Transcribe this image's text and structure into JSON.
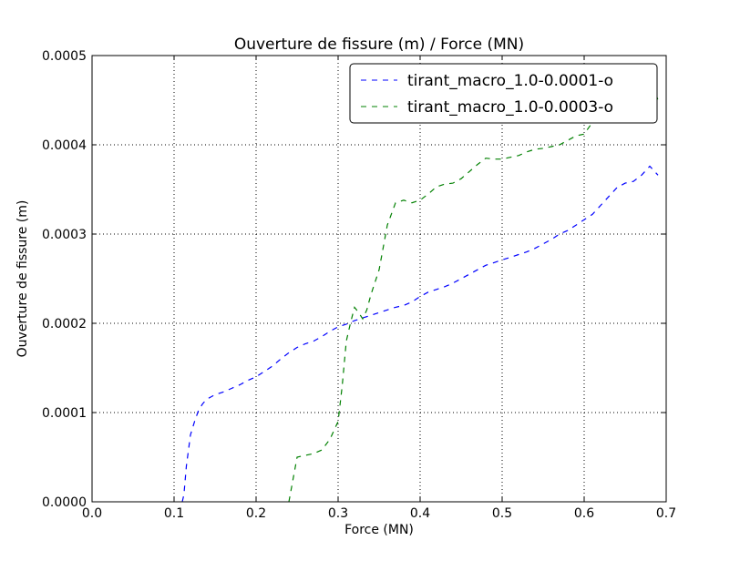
{
  "colors": {
    "series_1": "#0000ff",
    "series_2": "#008000",
    "grid": "#000000",
    "frame": "#000000",
    "legend_border": "#000000"
  },
  "chart_data": {
    "type": "line",
    "title": "Ouverture de fissure (m) / Force (MN)",
    "xlabel": "Force (MN)",
    "ylabel": "Ouverture de fissure (m)",
    "xlim": [
      0.0,
      0.7
    ],
    "ylim": [
      0.0,
      0.0005
    ],
    "xticks": [
      0.0,
      0.1,
      0.2,
      0.3,
      0.4,
      0.5,
      0.6,
      0.7
    ],
    "xtick_labels": [
      "0.0",
      "0.1",
      "0.2",
      "0.3",
      "0.4",
      "0.5",
      "0.6",
      "0.7"
    ],
    "yticks": [
      0.0,
      0.0001,
      0.0002,
      0.0003,
      0.0004,
      0.0005
    ],
    "ytick_labels": [
      "0.0000",
      "0.0001",
      "0.0002",
      "0.0003",
      "0.0004",
      "0.0005"
    ],
    "grid": true,
    "line_style": "dashed",
    "legend_position": "top-right",
    "series": [
      {
        "name": "tirant_macro_1.0-0.0001-o",
        "color": "#0000ff",
        "x": [
          0.11,
          0.112,
          0.115,
          0.12,
          0.125,
          0.13,
          0.135,
          0.14,
          0.15,
          0.16,
          0.17,
          0.18,
          0.19,
          0.2,
          0.21,
          0.22,
          0.23,
          0.24,
          0.25,
          0.26,
          0.27,
          0.28,
          0.29,
          0.3,
          0.31,
          0.32,
          0.33,
          0.34,
          0.35,
          0.36,
          0.37,
          0.38,
          0.39,
          0.4,
          0.41,
          0.42,
          0.43,
          0.44,
          0.45,
          0.46,
          0.47,
          0.48,
          0.49,
          0.5,
          0.51,
          0.52,
          0.53,
          0.54,
          0.55,
          0.56,
          0.57,
          0.58,
          0.59,
          0.6,
          0.61,
          0.62,
          0.63,
          0.64,
          0.65,
          0.66,
          0.67,
          0.68,
          0.69
        ],
        "y": [
          0.0,
          8e-06,
          4e-05,
          7.5e-05,
          9e-05,
          0.000103,
          0.00011,
          0.000115,
          0.00012,
          0.000123,
          0.000127,
          0.000131,
          0.000136,
          0.00014,
          0.000146,
          0.000152,
          0.00016,
          0.000167,
          0.000173,
          0.000177,
          0.00018,
          0.000185,
          0.000191,
          0.000196,
          0.000199,
          0.000203,
          0.000206,
          0.000209,
          0.000212,
          0.000215,
          0.000218,
          0.00022,
          0.000224,
          0.00023,
          0.000235,
          0.000238,
          0.000241,
          0.000245,
          0.00025,
          0.000255,
          0.00026,
          0.000265,
          0.000268,
          0.000271,
          0.000274,
          0.000277,
          0.00028,
          0.000284,
          0.000289,
          0.000294,
          0.0003,
          0.000304,
          0.00031,
          0.000316,
          0.000322,
          0.000332,
          0.000342,
          0.000352,
          0.000357,
          0.000359,
          0.000366,
          0.000376,
          0.000366
        ]
      },
      {
        "name": "tirant_macro_1.0-0.0003-o",
        "color": "#008000",
        "x": [
          0.24,
          0.245,
          0.25,
          0.26,
          0.27,
          0.28,
          0.29,
          0.3,
          0.305,
          0.31,
          0.315,
          0.32,
          0.325,
          0.33,
          0.335,
          0.34,
          0.35,
          0.36,
          0.37,
          0.38,
          0.39,
          0.4,
          0.41,
          0.42,
          0.43,
          0.44,
          0.45,
          0.46,
          0.47,
          0.48,
          0.49,
          0.5,
          0.51,
          0.52,
          0.53,
          0.54,
          0.55,
          0.56,
          0.57,
          0.58,
          0.59,
          0.6,
          0.61,
          0.62,
          0.63,
          0.64,
          0.65,
          0.66,
          0.67,
          0.68,
          0.69
        ],
        "y": [
          0.0,
          2.5e-05,
          5e-05,
          5.2e-05,
          5.4e-05,
          5.8e-05,
          7e-05,
          9e-05,
          0.00013,
          0.00018,
          0.0002,
          0.000218,
          0.000212,
          0.000205,
          0.000215,
          0.000232,
          0.00026,
          0.00031,
          0.000335,
          0.000338,
          0.000335,
          0.000338,
          0.000345,
          0.000353,
          0.000356,
          0.000357,
          0.000362,
          0.00037,
          0.000378,
          0.000385,
          0.000384,
          0.000384,
          0.000386,
          0.000388,
          0.000392,
          0.000395,
          0.000396,
          0.000398,
          0.0004,
          0.000405,
          0.00041,
          0.000412,
          0.000425,
          0.000445,
          0.00046,
          0.000468,
          0.00047,
          0.000472,
          0.000475,
          0.000478,
          0.00045
        ]
      }
    ]
  }
}
